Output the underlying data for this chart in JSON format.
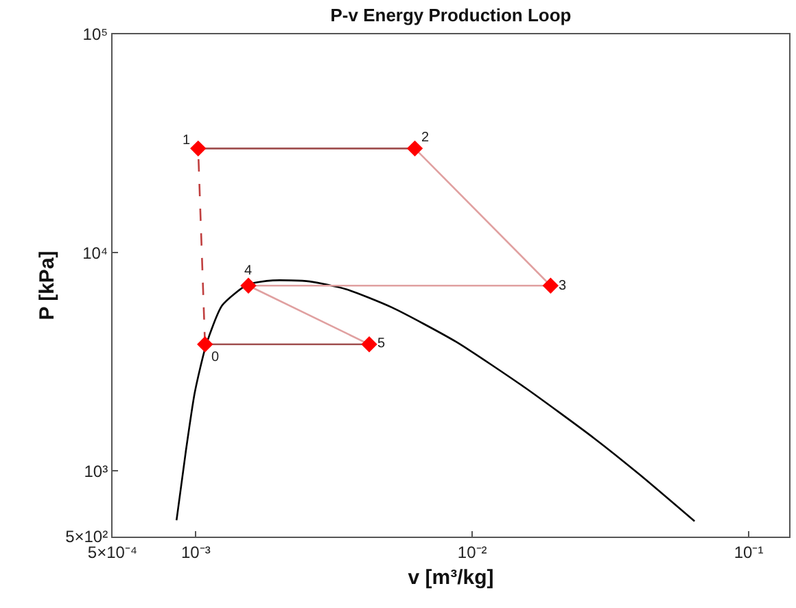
{
  "chart_data": {
    "type": "line",
    "title": "P-v Energy Production Loop",
    "xlabel": "v [m³/kg]",
    "ylabel": "P [kPa]",
    "log": "xy",
    "grid": false,
    "xlim": [
      0.0005,
      0.14
    ],
    "xticks": [
      {
        "value": 0.0005,
        "label": "5×10⁻⁴"
      },
      {
        "value": 0.001,
        "label": "10⁻³"
      },
      {
        "value": 0.01,
        "label": "10⁻²"
      },
      {
        "value": 0.1,
        "label": "10⁻¹"
      }
    ],
    "ylim": [
      500,
      100000
    ],
    "yticks": [
      {
        "value": 500,
        "label": "5×10²"
      },
      {
        "value": 1000,
        "label": "10³"
      },
      {
        "value": 10000,
        "label": "10⁴"
      },
      {
        "value": 100000,
        "label": "10⁵"
      }
    ],
    "series": [
      {
        "color": "#000000",
        "marker": "none",
        "line_style": "solid",
        "x": [
          0.000852,
          0.00092,
          0.000992,
          0.001092,
          0.001247,
          0.00154,
          0.0019,
          0.00258,
          0.0035,
          0.00513,
          0.00875,
          0.0155,
          0.0275,
          0.0403,
          0.0637
        ],
        "values": [
          594,
          1224,
          2290,
          3806,
          5740,
          7137,
          7457,
          7380,
          6795,
          5603,
          3900,
          2409,
          1416,
          962,
          588
        ]
      },
      {
        "type": "line",
        "color": "#c04040",
        "marker": "none",
        "line_style": "dashed",
        "x": [
          0.00108,
          0.00102
        ],
        "values": [
          3800,
          30000
        ]
      },
      {
        "type": "line",
        "color": "#a05050",
        "marker": "none",
        "line_style": "solid",
        "x": [
          0.00102,
          0.0062
        ],
        "values": [
          30000,
          30000
        ]
      },
      {
        "type": "line",
        "color": "#e0a0a0",
        "marker": "none",
        "line_style": "solid",
        "x": [
          0.0062,
          0.0192
        ],
        "values": [
          30000,
          7060
        ]
      },
      {
        "type": "line",
        "color": "#e0a0a0",
        "marker": "none",
        "line_style": "solid",
        "x": [
          0.0192,
          0.00155
        ],
        "values": [
          7060,
          7060
        ]
      },
      {
        "type": "line",
        "color": "#e0a0a0",
        "marker": "none",
        "line_style": "solid",
        "x": [
          0.00155,
          0.00424
        ],
        "values": [
          7060,
          3800
        ]
      },
      {
        "type": "line",
        "color": "#a05050",
        "marker": "none",
        "line_style": "solid",
        "x": [
          0.00424,
          0.00108
        ],
        "values": [
          3800,
          3800
        ]
      },
      {
        "type": "scatter",
        "color": "#ff0000",
        "marker": "diamond",
        "x": [
          0.00108,
          0.00102,
          0.0062,
          0.0192,
          0.00155,
          0.00424
        ],
        "values": [
          3800,
          30000,
          30000,
          7060,
          7060,
          3800
        ]
      }
    ],
    "annotations": [
      {
        "text": "0",
        "x": 0.00108,
        "y": 3800
      },
      {
        "text": "1",
        "x": 0.00102,
        "y": 30000
      },
      {
        "text": "2",
        "x": 0.0062,
        "y": 30000
      },
      {
        "text": "3",
        "x": 0.0192,
        "y": 7060
      },
      {
        "text": "4",
        "x": 0.00155,
        "y": 7060
      },
      {
        "text": "5",
        "x": 0.00424,
        "y": 3800
      }
    ]
  }
}
